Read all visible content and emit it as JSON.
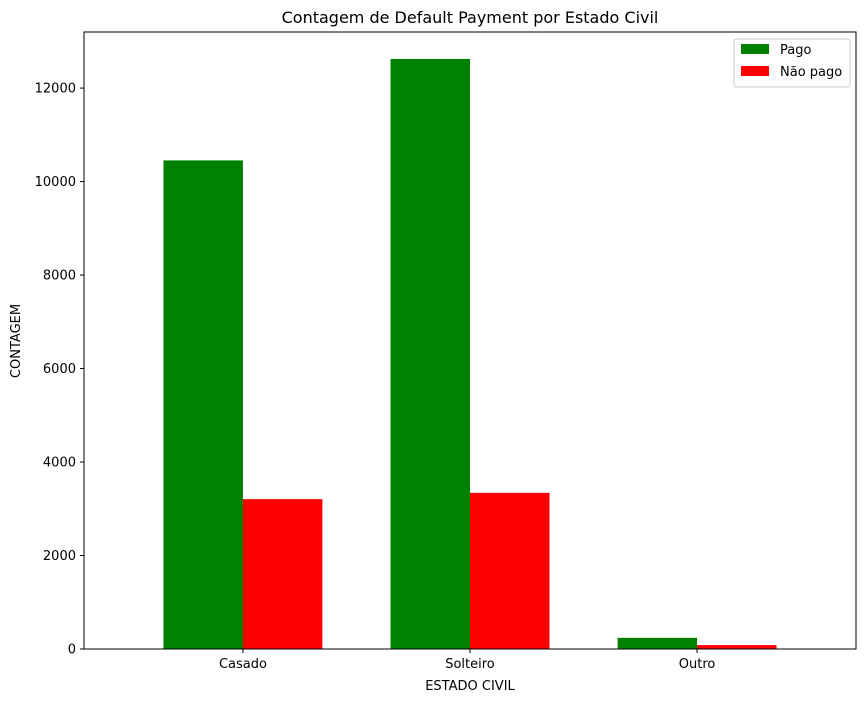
{
  "chart_data": {
    "type": "bar",
    "title": "Contagem de Default Payment por Estado Civil",
    "xlabel": "ESTADO CIVIL",
    "ylabel": "CONTAGEM",
    "categories": [
      "Casado",
      "Solteiro",
      "Outro"
    ],
    "series": [
      {
        "name": "Pago",
        "color": "#008000",
        "values": [
          10453,
          12623,
          239
        ]
      },
      {
        "name": "Não pago",
        "color": "#ff0000",
        "values": [
          3206,
          3341,
          84
        ]
      }
    ],
    "ylim": [
      0,
      13200
    ],
    "yticks": [
      0,
      2000,
      4000,
      6000,
      8000,
      10000,
      12000
    ],
    "grid": false,
    "legend_position": "top-right"
  }
}
